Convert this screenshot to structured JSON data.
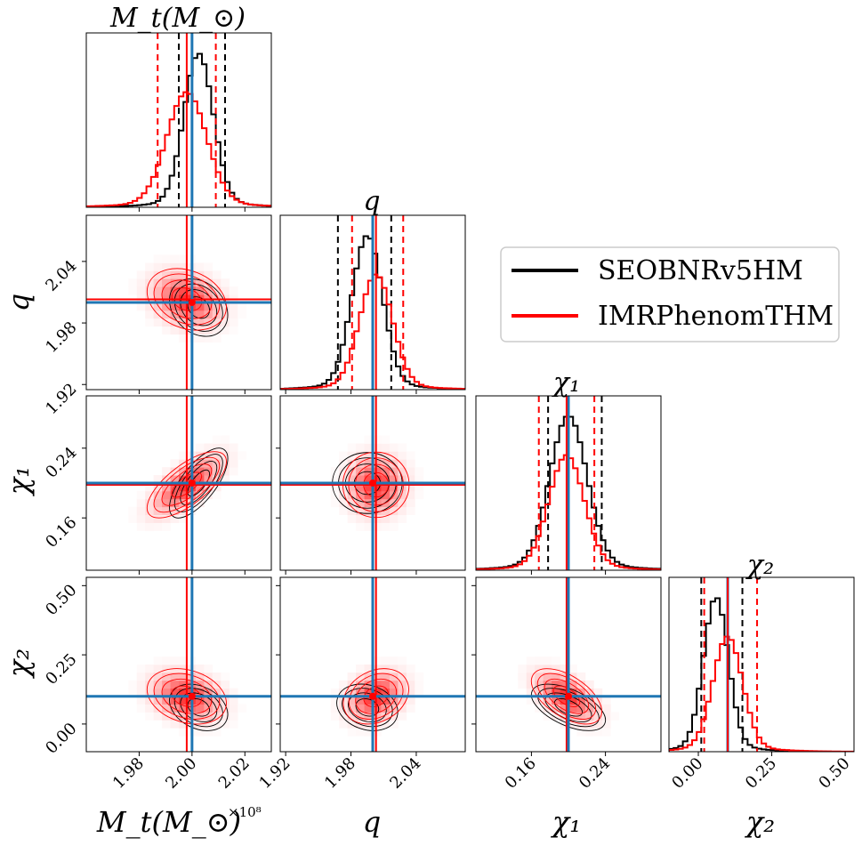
{
  "chart_data": {
    "type": "corner",
    "params": [
      "Mt",
      "q",
      "chi1",
      "chi2"
    ],
    "titles": [
      "M_t(M_⊙)",
      "q",
      "χ₁",
      "χ₂"
    ],
    "axis_labels": [
      "M_t(M_⊙)",
      "q",
      "χ₁",
      "χ₂"
    ],
    "offset_text": "×10⁸",
    "ranges": [
      [
        1.96,
        2.03
      ],
      [
        1.915,
        2.085
      ],
      [
        0.1,
        0.3
      ],
      [
        -0.1,
        0.53
      ]
    ],
    "ticks": [
      {
        "values": [
          1.98,
          2.0,
          2.02
        ],
        "labels": [
          "1.98",
          "2.00",
          "2.02"
        ]
      },
      {
        "values": [
          1.92,
          1.98,
          2.04
        ],
        "labels": [
          "1.92",
          "1.98",
          "2.04"
        ]
      },
      {
        "values": [
          0.16,
          0.24
        ],
        "labels": [
          "0.16",
          "0.24"
        ]
      },
      {
        "values": [
          0.0,
          0.25,
          0.5
        ],
        "labels": [
          "0.00",
          "0.25",
          "0.50"
        ]
      }
    ],
    "injected_values": [
      2.0,
      2.0,
      0.2,
      0.1
    ],
    "legend": {
      "position": "upper-right",
      "entries": [
        "SEOBNRv5HM",
        "IMRPhenomTHM"
      ]
    },
    "series": [
      {
        "name": "SEOBNRv5HM",
        "color": "#000000",
        "mean": [
          2.0025,
          1.995,
          0.2,
          0.06
        ],
        "sigma": [
          0.0055,
          0.014,
          0.02,
          0.042
        ],
        "correlation": [
          [
            1,
            -0.25,
            0.7,
            -0.3
          ],
          [
            -0.25,
            1,
            0.0,
            -0.2
          ],
          [
            0.7,
            0.0,
            1,
            -0.55
          ],
          [
            -0.3,
            -0.2,
            -0.55,
            1
          ]
        ],
        "quantiles": [
          [
            1.995,
            2.0125
          ],
          [
            1.968,
            2.017
          ],
          [
            0.178,
            0.236
          ],
          [
            0.01,
            0.15
          ]
        ]
      },
      {
        "name": "IMRPhenomTHM",
        "color": "#ff0000",
        "mean": [
          1.998,
          2.003,
          0.198,
          0.1
        ],
        "sigma": [
          0.0075,
          0.015,
          0.019,
          0.05
        ],
        "correlation": [
          [
            1,
            -0.25,
            0.7,
            -0.25
          ],
          [
            -0.25,
            1,
            0.0,
            0.25
          ],
          [
            0.7,
            0.0,
            1,
            -0.55
          ],
          [
            -0.25,
            0.25,
            -0.55,
            1
          ]
        ],
        "quantiles": [
          [
            1.987,
            2.009
          ],
          [
            1.981,
            2.028
          ],
          [
            0.168,
            0.228
          ],
          [
            0.02,
            0.2
          ]
        ]
      }
    ],
    "colors": {
      "truth": "#1f77b4",
      "seob": "#000000",
      "imr": "#ff0000"
    }
  }
}
